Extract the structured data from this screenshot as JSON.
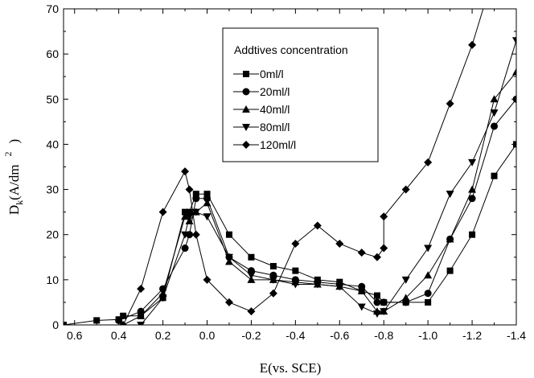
{
  "chart_data": {
    "type": "line",
    "xlabel": "E(vs. SCE)",
    "ylabel": "Dk(A/dm2)",
    "ylabel_parts": {
      "main": "D",
      "sub": "k",
      "open": "(A/dm",
      "sup": "2",
      "close": ")"
    },
    "xlim": [
      0.65,
      -1.4
    ],
    "ylim": [
      0,
      70
    ],
    "x_ticks": [
      0.6,
      0.4,
      0.2,
      0.0,
      -0.2,
      -0.4,
      -0.6,
      -0.8,
      -1.0,
      -1.2,
      -1.4
    ],
    "x_tick_labels": [
      "0.6",
      "0.4",
      "0.2",
      "0.0",
      "-0.2",
      "-0.4",
      "-0.6",
      "-0.8",
      "-1.0",
      "-1.2",
      "-1.4"
    ],
    "y_ticks": [
      0,
      10,
      20,
      30,
      40,
      50,
      60,
      70
    ],
    "y_tick_labels": [
      "0",
      "10",
      "20",
      "30",
      "40",
      "50",
      "60",
      "70"
    ],
    "grid": false,
    "legend": {
      "title": "Addtives concentration",
      "position": "top-right"
    },
    "series": [
      {
        "name": "0ml/l",
        "marker": "square",
        "x": [
          0.65,
          0.5,
          0.4,
          0.38,
          0.3,
          0.2,
          0.1,
          0.08,
          0.05,
          0.0,
          -0.1,
          -0.2,
          -0.3,
          -0.4,
          -0.5,
          -0.6,
          -0.7,
          -0.77,
          -0.8,
          -0.9,
          -1.0,
          -1.1,
          -1.2,
          -1.3,
          -1.4
        ],
        "y": [
          0,
          1,
          1.2,
          2,
          2,
          6,
          25,
          25,
          29,
          29,
          20,
          15,
          13,
          12,
          10,
          9.5,
          7.5,
          6.5,
          5,
          5,
          5,
          12,
          20,
          33,
          40
        ]
      },
      {
        "name": "20ml/l",
        "marker": "circle",
        "x": [
          0.4,
          0.3,
          0.2,
          0.1,
          0.08,
          0.05,
          0.0,
          -0.1,
          -0.2,
          -0.3,
          -0.4,
          -0.5,
          -0.6,
          -0.7,
          -0.77,
          -0.8,
          -0.9,
          -1.0,
          -1.1,
          -1.2,
          -1.3,
          -1.4
        ],
        "y": [
          1,
          3,
          8,
          17,
          20,
          28,
          28,
          15,
          12,
          11,
          10,
          9.5,
          9,
          8.5,
          5,
          5,
          5,
          7,
          19,
          28,
          44,
          50
        ]
      },
      {
        "name": "40ml/l",
        "marker": "triangle-up",
        "x": [
          0.38,
          0.3,
          0.2,
          0.1,
          0.08,
          0.05,
          0.0,
          -0.1,
          -0.2,
          -0.3,
          -0.4,
          -0.5,
          -0.6,
          -0.7,
          -0.77,
          -0.8,
          -0.9,
          -1.0,
          -1.1,
          -1.2,
          -1.3,
          -1.4
        ],
        "y": [
          0,
          2,
          7,
          24,
          23,
          25,
          27,
          14,
          10,
          10,
          9.5,
          9,
          8.5,
          7.5,
          3,
          3,
          6,
          11,
          19,
          30,
          50,
          56
        ]
      },
      {
        "name": "80ml/l",
        "marker": "triangle-down",
        "x": [
          0.3,
          0.2,
          0.1,
          0.08,
          0.05,
          0.0,
          -0.1,
          -0.2,
          -0.3,
          -0.4,
          -0.5,
          -0.6,
          -0.7,
          -0.77,
          -0.8,
          -0.9,
          -1.0,
          -1.1,
          -1.2,
          -1.3,
          -1.4
        ],
        "y": [
          0,
          6,
          20,
          24,
          25,
          24,
          15,
          11,
          10,
          9,
          9,
          8.5,
          4,
          2.5,
          3,
          10,
          17,
          29,
          36,
          47,
          63
        ]
      },
      {
        "name": "120ml/l",
        "marker": "diamond",
        "x": [
          0.38,
          0.3,
          0.2,
          0.1,
          0.08,
          0.05,
          0.0,
          -0.1,
          -0.2,
          -0.3,
          -0.4,
          -0.5,
          -0.6,
          -0.7,
          -0.77,
          -0.8,
          -0.8,
          -0.9,
          -1.0,
          -1.1,
          -1.2,
          -1.25
        ],
        "y": [
          0,
          8,
          25,
          34,
          30,
          20,
          10,
          5,
          3,
          7,
          18,
          22,
          18,
          16,
          15,
          17,
          24,
          30,
          36,
          49,
          62,
          70
        ]
      }
    ]
  }
}
